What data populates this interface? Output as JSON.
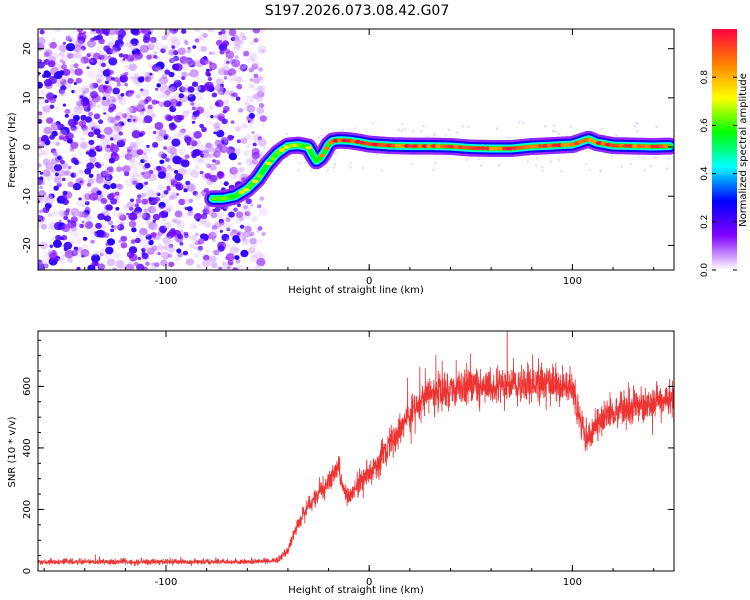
{
  "title": "S197.2026.073.08.42.G07",
  "chart_data": [
    {
      "type": "heatmap",
      "title": "S197.2026.073.08.42.G07",
      "xlabel": "Height of straight line (km)",
      "ylabel": "Frequency (Hz)",
      "xlim": [
        -163,
        150
      ],
      "ylim": [
        -25,
        24
      ],
      "xticks": [
        -100,
        0,
        100
      ],
      "yticks": [
        -20,
        -10,
        0,
        10,
        20
      ],
      "noise_region_x": [
        -163,
        -52
      ],
      "ridge": {
        "x": [
          -77,
          -72,
          -66,
          -60,
          -55,
          -50,
          -45,
          -40,
          -35,
          -30,
          -28,
          -26,
          -24,
          -22,
          -20,
          -18,
          -15,
          -10,
          -5,
          0,
          10,
          20,
          30,
          40,
          50,
          60,
          70,
          80,
          90,
          100,
          105,
          108,
          112,
          120,
          130,
          140,
          148
        ],
        "y": [
          -10.5,
          -10.5,
          -10,
          -8.5,
          -6.5,
          -3.5,
          -1.2,
          0.2,
          0.4,
          0,
          -1.5,
          -2.8,
          -2.2,
          -1,
          0.5,
          1.2,
          1.4,
          1.3,
          1.0,
          0.6,
          0.3,
          0.2,
          0.2,
          0.1,
          -0.2,
          -0.3,
          -0.3,
          0.1,
          0.3,
          0.5,
          1.2,
          1.6,
          0.9,
          0.3,
          0.2,
          0.1,
          0.2
        ]
      },
      "colorbar": {
        "label": "Normalized spectral amplitude",
        "ticks": [
          0.0,
          0.2,
          0.4,
          0.6,
          0.8
        ],
        "tick_labels": [
          "0.0",
          "0.2",
          "0.4",
          "0.6",
          "0.8"
        ],
        "range": [
          0,
          1
        ],
        "colors": [
          "#ffffff",
          "#8000ff",
          "#0000ff",
          "#00ffff",
          "#00ff00",
          "#ffff00",
          "#ff8000",
          "#ff0040"
        ]
      }
    },
    {
      "type": "line",
      "xlabel": "Height of straight line (km)",
      "ylabel": "SNR (10 * v/v)",
      "xlim": [
        -163,
        150
      ],
      "ylim": [
        0,
        780
      ],
      "xticks": [
        -100,
        0,
        100
      ],
      "yticks": [
        0,
        200,
        400,
        600
      ],
      "line_color": "#ee3333",
      "trend": {
        "x": [
          -163,
          -60,
          -50,
          -45,
          -40,
          -35,
          -30,
          -25,
          -20,
          -17,
          -15,
          -13,
          -10,
          -5,
          0,
          5,
          10,
          15,
          20,
          25,
          30,
          40,
          50,
          60,
          70,
          80,
          90,
          100,
          103,
          106,
          108,
          112,
          118,
          125,
          135,
          145,
          150
        ],
        "y": [
          25,
          25,
          28,
          30,
          70,
          150,
          210,
          250,
          290,
          330,
          340,
          270,
          240,
          280,
          320,
          360,
          410,
          460,
          510,
          550,
          580,
          590,
          600,
          600,
          600,
          605,
          610,
          600,
          520,
          450,
          425,
          480,
          500,
          520,
          540,
          555,
          560
        ]
      }
    }
  ]
}
